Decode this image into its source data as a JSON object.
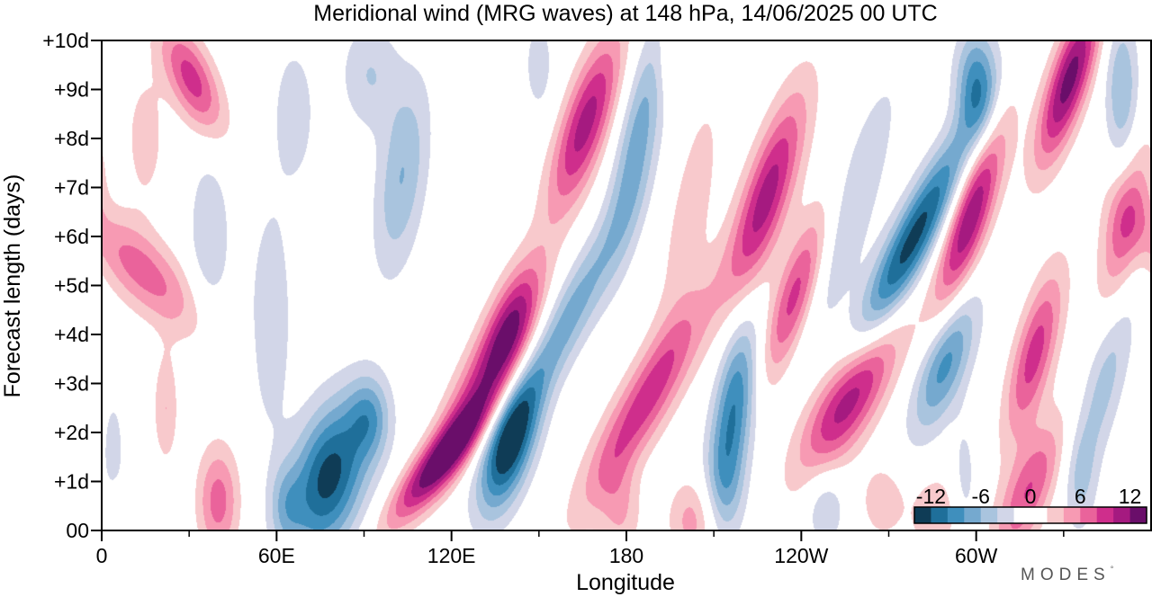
{
  "chart_data": {
    "type": "heatmap",
    "title": "Meridional wind (MRG waves) at  148 hPa,  14/06/2025  00 UTC",
    "xlabel": "Longitude",
    "ylabel": "Forecast length (days)",
    "x_ticks": [
      {
        "lon": 0,
        "label": "0"
      },
      {
        "lon": 60,
        "label": "60E"
      },
      {
        "lon": 120,
        "label": "120E"
      },
      {
        "lon": 180,
        "label": "180"
      },
      {
        "lon": 240,
        "label": "120W"
      },
      {
        "lon": 300,
        "label": "60W"
      }
    ],
    "x_range": [
      0,
      360
    ],
    "y_ticks": [
      {
        "day": 0,
        "label": "00"
      },
      {
        "day": 1,
        "label": "+1d"
      },
      {
        "day": 2,
        "label": "+2d"
      },
      {
        "day": 3,
        "label": "+3d"
      },
      {
        "day": 4,
        "label": "+4d"
      },
      {
        "day": 5,
        "label": "+5d"
      },
      {
        "day": 6,
        "label": "+6d"
      },
      {
        "day": 7,
        "label": "+7d"
      },
      {
        "day": 8,
        "label": "+8d"
      },
      {
        "day": 9,
        "label": "+9d"
      },
      {
        "day": 10,
        "label": "+10d"
      }
    ],
    "y_range": [
      0,
      10
    ],
    "colorbar": {
      "labels": [
        "-12",
        "-6",
        "0",
        "6",
        "12"
      ],
      "range": [
        -14,
        14
      ],
      "colors": [
        "#0f3c56",
        "#1f6f9a",
        "#3f8fbd",
        "#75a9cf",
        "#a9c4de",
        "#d2d6e8",
        "#ffffff",
        "#ffffff",
        "#f8c9cc",
        "#f79ab3",
        "#ea639b",
        "#cf2e8c",
        "#a51a80",
        "#6a0e6a"
      ]
    },
    "features": [
      {
        "lon": 78,
        "day": 1.1,
        "amp": -13,
        "slon": 9,
        "sday": 1.1,
        "tilt": 3
      },
      {
        "lon": 92,
        "day": 2.3,
        "amp": -6,
        "slon": 5,
        "sday": 0.6,
        "tilt": 0
      },
      {
        "lon": 58,
        "day": 4.3,
        "amp": -4,
        "slon": 5,
        "sday": 1.6,
        "tilt": 0
      },
      {
        "lon": 103,
        "day": 7.2,
        "amp": -6,
        "slon": 6,
        "sday": 1.4,
        "tilt": 2
      },
      {
        "lon": 37,
        "day": 6.0,
        "amp": -4,
        "slon": 5,
        "sday": 1.2,
        "tilt": 0
      },
      {
        "lon": 92,
        "day": 9.3,
        "amp": -4,
        "slon": 7,
        "sday": 0.8,
        "tilt": 0
      },
      {
        "lon": 66,
        "day": 8.5,
        "amp": -3,
        "slon": 6,
        "sday": 1.2,
        "tilt": 0
      },
      {
        "lon": 63,
        "day": 0.5,
        "amp": -4,
        "slon": 4,
        "sday": 0.6,
        "tilt": 0
      },
      {
        "lon": 116,
        "day": 1.4,
        "amp": 13,
        "slon": 6,
        "sday": 0.9,
        "tilt": 12
      },
      {
        "lon": 140,
        "day": 4.0,
        "amp": 13,
        "slon": 6,
        "sday": 1.0,
        "tilt": 5
      },
      {
        "lon": 125,
        "day": 2.5,
        "amp": 6,
        "slon": 6,
        "sday": 1.0,
        "tilt": 6
      },
      {
        "lon": 140,
        "day": 1.8,
        "amp": -14,
        "slon": 6,
        "sday": 1.0,
        "tilt": 4
      },
      {
        "lon": 160,
        "day": 4.3,
        "amp": -7,
        "slon": 6,
        "sday": 1.5,
        "tilt": 8
      },
      {
        "lon": 184,
        "day": 8.0,
        "amp": -7,
        "slon": 5,
        "sday": 1.7,
        "tilt": 3
      },
      {
        "lon": 166,
        "day": 8.3,
        "amp": 11,
        "slon": 6,
        "sday": 1.3,
        "tilt": 5
      },
      {
        "lon": 186,
        "day": 2.6,
        "amp": 9,
        "slon": 7,
        "sday": 1.5,
        "tilt": 9
      },
      {
        "lon": 178,
        "day": 0.4,
        "amp": 4,
        "slon": 5,
        "sday": 0.7,
        "tilt": 0
      },
      {
        "lon": 202,
        "day": 6.5,
        "amp": 3,
        "slon": 6,
        "sday": 2.0,
        "tilt": 3
      },
      {
        "lon": 217,
        "day": 2.5,
        "amp": -10,
        "slon": 5,
        "sday": 1.3,
        "tilt": 2
      },
      {
        "lon": 214,
        "day": 0.8,
        "amp": -4,
        "slon": 5,
        "sday": 0.8,
        "tilt": 0
      },
      {
        "lon": 203,
        "day": 0.2,
        "amp": 5,
        "slon": 6,
        "sday": 0.6,
        "tilt": 0
      },
      {
        "lon": 228,
        "day": 6.8,
        "amp": 11,
        "slon": 6,
        "sday": 1.5,
        "tilt": 5
      },
      {
        "lon": 238,
        "day": 4.8,
        "amp": 9,
        "slon": 5,
        "sday": 1.2,
        "tilt": 5
      },
      {
        "lon": 256,
        "day": 2.7,
        "amp": 12,
        "slon": 8,
        "sday": 1.1,
        "tilt": 8
      },
      {
        "lon": 278,
        "day": 5.9,
        "amp": -13,
        "slon": 6,
        "sday": 1.6,
        "tilt": 8
      },
      {
        "lon": 289,
        "day": 3.4,
        "amp": -9,
        "slon": 6,
        "sday": 1.0,
        "tilt": 5
      },
      {
        "lon": 257,
        "day": 6.5,
        "amp": -4,
        "slon": 6,
        "sday": 2.0,
        "tilt": 5
      },
      {
        "lon": 298,
        "day": 6.4,
        "amp": 12,
        "slon": 5,
        "sday": 1.4,
        "tilt": 5
      },
      {
        "lon": 320,
        "day": 3.6,
        "amp": 9,
        "slon": 5,
        "sday": 1.2,
        "tilt": 4
      },
      {
        "lon": 318,
        "day": 0.8,
        "amp": 8,
        "slon": 6,
        "sday": 1.0,
        "tilt": 6
      },
      {
        "lon": 332,
        "day": 9.2,
        "amp": 13,
        "slon": 5,
        "sday": 1.2,
        "tilt": 5
      },
      {
        "lon": 300,
        "day": 9.1,
        "amp": -9,
        "slon": 5,
        "sday": 0.8,
        "tilt": 0
      },
      {
        "lon": 350,
        "day": 9.0,
        "amp": -6,
        "slon": 4,
        "sday": 1.1,
        "tilt": 0
      },
      {
        "lon": 344,
        "day": 3.0,
        "amp": -5,
        "slon": 5,
        "sday": 1.5,
        "tilt": 4
      },
      {
        "lon": 336,
        "day": 1.0,
        "amp": -3,
        "slon": 4,
        "sday": 0.8,
        "tilt": 0
      },
      {
        "lon": 296,
        "day": 1.0,
        "amp": -3,
        "slon": 3,
        "sday": 0.9,
        "tilt": 0
      },
      {
        "lon": 286,
        "day": 0.3,
        "amp": 4,
        "slon": 6,
        "sday": 0.6,
        "tilt": 0
      },
      {
        "lon": 351,
        "day": 6.2,
        "amp": 7,
        "slon": 5,
        "sday": 1.2,
        "tilt": 3
      },
      {
        "lon": 14,
        "day": 5.3,
        "amp": 7,
        "slon": 10,
        "sday": 0.9,
        "tilt": -12
      },
      {
        "lon": 31,
        "day": 9.2,
        "amp": 9,
        "slon": 6,
        "sday": 0.8,
        "tilt": -6
      },
      {
        "lon": 40,
        "day": 0.6,
        "amp": 7,
        "slon": 5,
        "sday": 0.8,
        "tilt": 0
      },
      {
        "lon": 22,
        "day": 2.5,
        "amp": 4,
        "slon": 3,
        "sday": 0.8,
        "tilt": 0
      },
      {
        "lon": 15,
        "day": 8.0,
        "amp": 3,
        "slon": 5,
        "sday": 1.0,
        "tilt": 0
      },
      {
        "lon": 4,
        "day": 1.5,
        "amp": -3,
        "slon": 3,
        "sday": 1.0,
        "tilt": 0
      },
      {
        "lon": 5,
        "day": 0.2,
        "amp": 3,
        "slon": 3,
        "sday": 0.5,
        "tilt": 0
      },
      {
        "lon": 150,
        "day": 9.5,
        "amp": -3,
        "slon": 4,
        "sday": 0.8,
        "tilt": 0
      },
      {
        "lon": 196,
        "day": 9.6,
        "amp": 3,
        "slon": 4,
        "sday": 0.6,
        "tilt": 0
      },
      {
        "lon": 248,
        "day": 0.5,
        "amp": -4,
        "slon": 5,
        "sday": 0.6,
        "tilt": 0
      },
      {
        "lon": 268,
        "day": 0.6,
        "amp": 4,
        "slon": 5,
        "sday": 0.5,
        "tilt": 0
      }
    ]
  },
  "branding": {
    "text": "MODES",
    "mark": "°"
  }
}
